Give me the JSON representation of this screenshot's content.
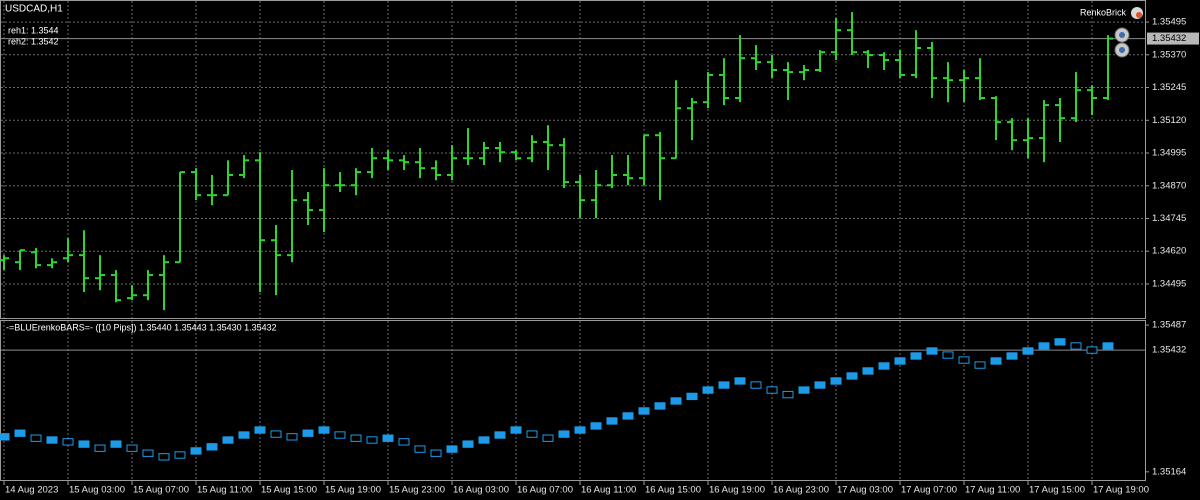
{
  "chart_data": [
    {
      "type": "ohlc",
      "title": "USDCAD,H1",
      "annotations": [
        "reh1: 1.3544",
        "reh2: 1.3542"
      ],
      "indicator": "RenkoBrick",
      "color": "#2ed52e",
      "grid": true,
      "categories": [
        "14 Aug 2023",
        null,
        null,
        null,
        "15 Aug 03:00",
        null,
        null,
        null,
        "15 Aug 07:00",
        null,
        null,
        null,
        "15 Aug 11:00",
        null,
        null,
        null,
        "15 Aug 15:00",
        null,
        null,
        null,
        "15 Aug 19:00",
        null,
        null,
        null,
        "15 Aug 23:00",
        null,
        null,
        null,
        "16 Aug 03:00",
        null,
        null,
        null,
        "16 Aug 07:00",
        null,
        null,
        null,
        "16 Aug 11:00",
        null,
        null,
        null,
        "16 Aug 15:00",
        null,
        null,
        null,
        "16 Aug 19:00",
        null,
        null,
        null,
        "16 Aug 23:00",
        null,
        null,
        null,
        "17 Aug 03:00",
        null,
        null,
        null,
        "17 Aug 07:00",
        null,
        null,
        null,
        "17 Aug 11:00",
        null,
        null,
        null,
        "17 Aug 15:00",
        null,
        null,
        null,
        "17 Aug 19:00",
        null
      ],
      "open": [
        1.34586,
        1.34578,
        1.34616,
        1.34567,
        1.34593,
        1.34605,
        1.34517,
        1.34529,
        1.34441,
        1.34452,
        1.34529,
        1.34578,
        1.34922,
        1.34834,
        1.34834,
        1.34911,
        1.34967,
        1.34662,
        1.34605,
        1.34815,
        1.34777,
        1.34872,
        1.34872,
        1.34922,
        1.34975,
        1.34967,
        1.3496,
        1.34937,
        1.34911,
        1.34975,
        1.34975,
        1.35014,
        1.34998,
        1.34975,
        1.35037,
        1.35025,
        1.34884,
        1.34815,
        1.34872,
        1.34911,
        1.34899,
        1.35063,
        1.34975,
        1.35166,
        1.35189,
        1.35293,
        1.35205,
        1.35357,
        1.35342,
        1.35312,
        1.35304,
        1.35312,
        1.3538,
        1.35464,
        1.3538,
        1.35369,
        1.3535,
        1.35293,
        1.35396,
        1.35281,
        1.35273,
        1.35281,
        1.35205,
        1.35113,
        1.35044,
        1.35052,
        1.35178,
        1.35128,
        1.35235,
        1.35205
      ],
      "high": [
        1.34605,
        1.34624,
        1.34632,
        1.34593,
        1.3467,
        1.347,
        1.34605,
        1.34548,
        1.3449,
        1.34548,
        1.34605,
        1.34922,
        1.34937,
        1.34911,
        1.34967,
        1.34987,
        1.34998,
        1.3472,
        1.3493,
        1.34846,
        1.34937,
        1.34922,
        1.34937,
        1.35014,
        1.35006,
        1.34987,
        1.35014,
        1.34967,
        1.35025,
        1.3509,
        1.35037,
        1.35037,
        1.35006,
        1.35063,
        1.35101,
        1.35052,
        1.34911,
        1.3493,
        1.34987,
        1.34987,
        1.35063,
        1.35075,
        1.35273,
        1.35205,
        1.35304,
        1.35357,
        1.35445,
        1.35407,
        1.35369,
        1.35342,
        1.35331,
        1.35388,
        1.3551,
        1.35533,
        1.35388,
        1.3538,
        1.35388,
        1.35464,
        1.35419,
        1.35342,
        1.35312,
        1.35357,
        1.35212,
        1.35128,
        1.35128,
        1.35197,
        1.35205,
        1.35304,
        1.35254,
        1.35445
      ],
      "low": [
        1.34548,
        1.34548,
        1.34555,
        1.34555,
        1.34578,
        1.34464,
        1.34471,
        1.34425,
        1.34433,
        1.34433,
        1.34395,
        1.34578,
        1.34815,
        1.34796,
        1.34834,
        1.34899,
        1.34464,
        1.34452,
        1.34578,
        1.3472,
        1.34693,
        1.34846,
        1.34834,
        1.34899,
        1.3493,
        1.3493,
        1.34899,
        1.34891,
        1.34891,
        1.34949,
        1.34949,
        1.3496,
        1.34967,
        1.3496,
        1.3493,
        1.34861,
        1.34746,
        1.34746,
        1.34861,
        1.34872,
        1.34872,
        1.34815,
        1.34975,
        1.35044,
        1.35166,
        1.35178,
        1.35189,
        1.35312,
        1.35281,
        1.35197,
        1.35273,
        1.35304,
        1.3535,
        1.35369,
        1.35319,
        1.35312,
        1.35281,
        1.35281,
        1.35205,
        1.35189,
        1.35189,
        1.35197,
        1.35044,
        1.35006,
        1.34975,
        1.3496,
        1.35037,
        1.35113,
        1.3514,
        1.35197
      ],
      "close": [
        1.34593,
        1.34624,
        1.34567,
        1.34578,
        1.34605,
        1.34517,
        1.34529,
        1.34433,
        1.34452,
        1.34529,
        1.34578,
        1.34922,
        1.34834,
        1.34834,
        1.34911,
        1.34967,
        1.34662,
        1.34605,
        1.34815,
        1.34777,
        1.34872,
        1.34872,
        1.34922,
        1.34975,
        1.34967,
        1.3496,
        1.34937,
        1.34911,
        1.34975,
        1.34975,
        1.35014,
        1.34998,
        1.34975,
        1.35037,
        1.35025,
        1.34884,
        1.34815,
        1.34872,
        1.34911,
        1.34899,
        1.35063,
        1.34975,
        1.35166,
        1.35189,
        1.35293,
        1.35205,
        1.35357,
        1.35342,
        1.35312,
        1.35304,
        1.35312,
        1.3538,
        1.35464,
        1.3538,
        1.35369,
        1.3535,
        1.35293,
        1.35396,
        1.35281,
        1.35273,
        1.35281,
        1.35205,
        1.35113,
        1.35044,
        1.35052,
        1.35178,
        1.35128,
        1.35235,
        1.35205,
        1.35432
      ],
      "last_price": 1.35432,
      "ylim": [
        1.34365,
        1.35564
      ],
      "yticks": [
        1.35495,
        {
          "value": 1.3537,
          "label": "1.35370"
        },
        1.35245,
        {
          "value": 1.3512,
          "label": "1.35120"
        },
        1.34995,
        {
          "value": 1.3487,
          "label": "1.34870"
        },
        1.34745,
        {
          "value": 1.3462,
          "label": "1.34620"
        },
        1.34495
      ]
    },
    {
      "type": "renko",
      "title": "-=BLUErenkoBARS=- ([10 Pips]) 1.35440 1.35443 1.35430 1.35432",
      "color": "#1e9be8",
      "open": [
        1.35234,
        1.35242,
        1.35245,
        1.35227,
        1.35237,
        1.35218,
        1.35223,
        1.35218,
        1.35223,
        1.35212,
        1.35204,
        1.35208,
        1.35203,
        1.35212,
        1.35227,
        1.35238,
        1.35249,
        1.35254,
        1.35248,
        1.35242,
        1.35249,
        1.35252,
        1.35245,
        1.35241,
        1.35231,
        1.35237,
        1.35221,
        1.35212,
        1.35207,
        1.35218,
        1.35227,
        1.35238,
        1.35249,
        1.35254,
        1.35245,
        1.3524,
        1.35249,
        1.35258,
        1.35269,
        1.3528,
        1.35291,
        1.35302,
        1.35313,
        1.35323,
        1.35337,
        1.35348,
        1.35357,
        1.35362,
        1.35351,
        1.35341,
        1.35337,
        1.35348,
        1.35357,
        1.35368,
        1.35379,
        1.3539,
        1.35401,
        1.35412,
        1.35423,
        1.35428,
        1.35417,
        1.35406,
        1.35401,
        1.35412,
        1.35423,
        1.35434,
        1.35443,
        1.35448,
        1.35439,
        1.35434
      ],
      "close": [
        1.35248,
        1.35256,
        1.35231,
        1.35241,
        1.35223,
        1.35232,
        1.35209,
        1.35232,
        1.35209,
        1.35198,
        1.3519,
        1.35194,
        1.35217,
        1.35226,
        1.35241,
        1.35252,
        1.35263,
        1.3524,
        1.35234,
        1.35256,
        1.35263,
        1.35238,
        1.35231,
        1.35227,
        1.35245,
        1.35223,
        1.35207,
        1.35198,
        1.35221,
        1.35232,
        1.35241,
        1.35252,
        1.35263,
        1.3524,
        1.35231,
        1.35254,
        1.35263,
        1.35272,
        1.35283,
        1.35294,
        1.35305,
        1.35316,
        1.35327,
        1.35337,
        1.35351,
        1.35362,
        1.35371,
        1.35348,
        1.35337,
        1.35327,
        1.35351,
        1.35362,
        1.35371,
        1.35382,
        1.35393,
        1.35404,
        1.35415,
        1.35426,
        1.35437,
        1.35414,
        1.35403,
        1.35392,
        1.35415,
        1.35426,
        1.35437,
        1.35448,
        1.35457,
        1.35434,
        1.35425,
        1.35448
      ],
      "last_price": 1.35432,
      "ylim": [
        1.35146,
        1.35496
      ],
      "yticks": [
        1.35487,
        1.35164
      ]
    }
  ]
}
